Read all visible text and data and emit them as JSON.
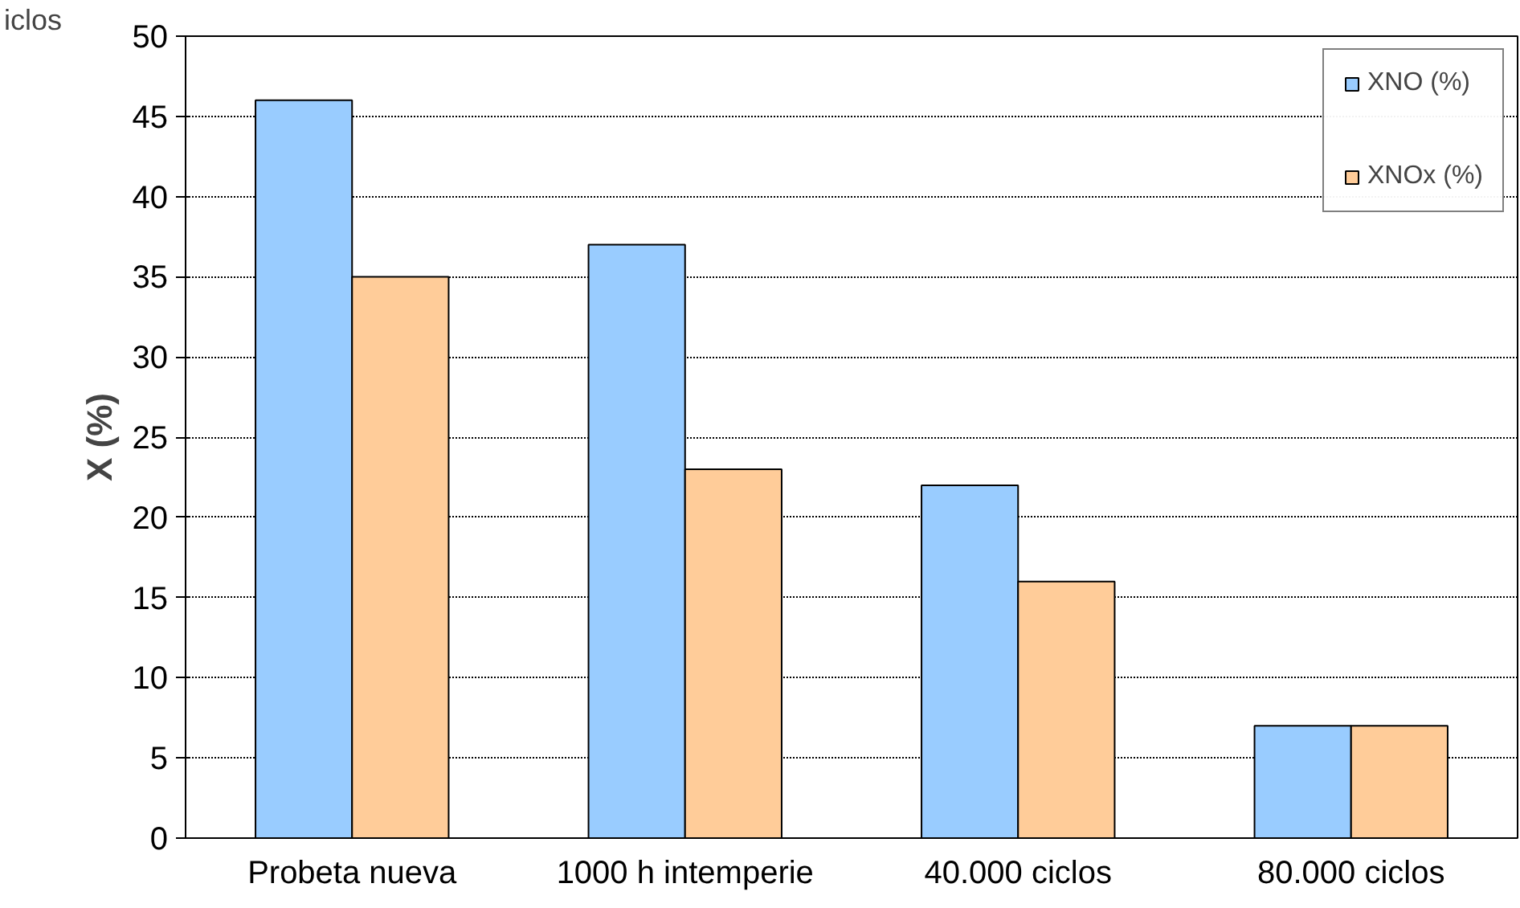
{
  "chart_data": {
    "type": "bar",
    "ylabel": "X (%)",
    "categories": [
      "Probeta nueva",
      "1000 h intemperie",
      "40.000 ciclos",
      "80.000 ciclos"
    ],
    "series": [
      {
        "name": "XNO (%)",
        "color": "#99ccff",
        "values": [
          46,
          37,
          22,
          7
        ]
      },
      {
        "name": "XNOx (%)",
        "color": "#ffcc99",
        "values": [
          35,
          23,
          16,
          7
        ]
      }
    ],
    "ylim": [
      0,
      50
    ],
    "yticks": [
      0,
      5,
      10,
      15,
      20,
      25,
      30,
      35,
      40,
      45,
      50
    ],
    "grid": "y",
    "legend": "top right",
    "annotations": [
      "iclos"
    ]
  }
}
